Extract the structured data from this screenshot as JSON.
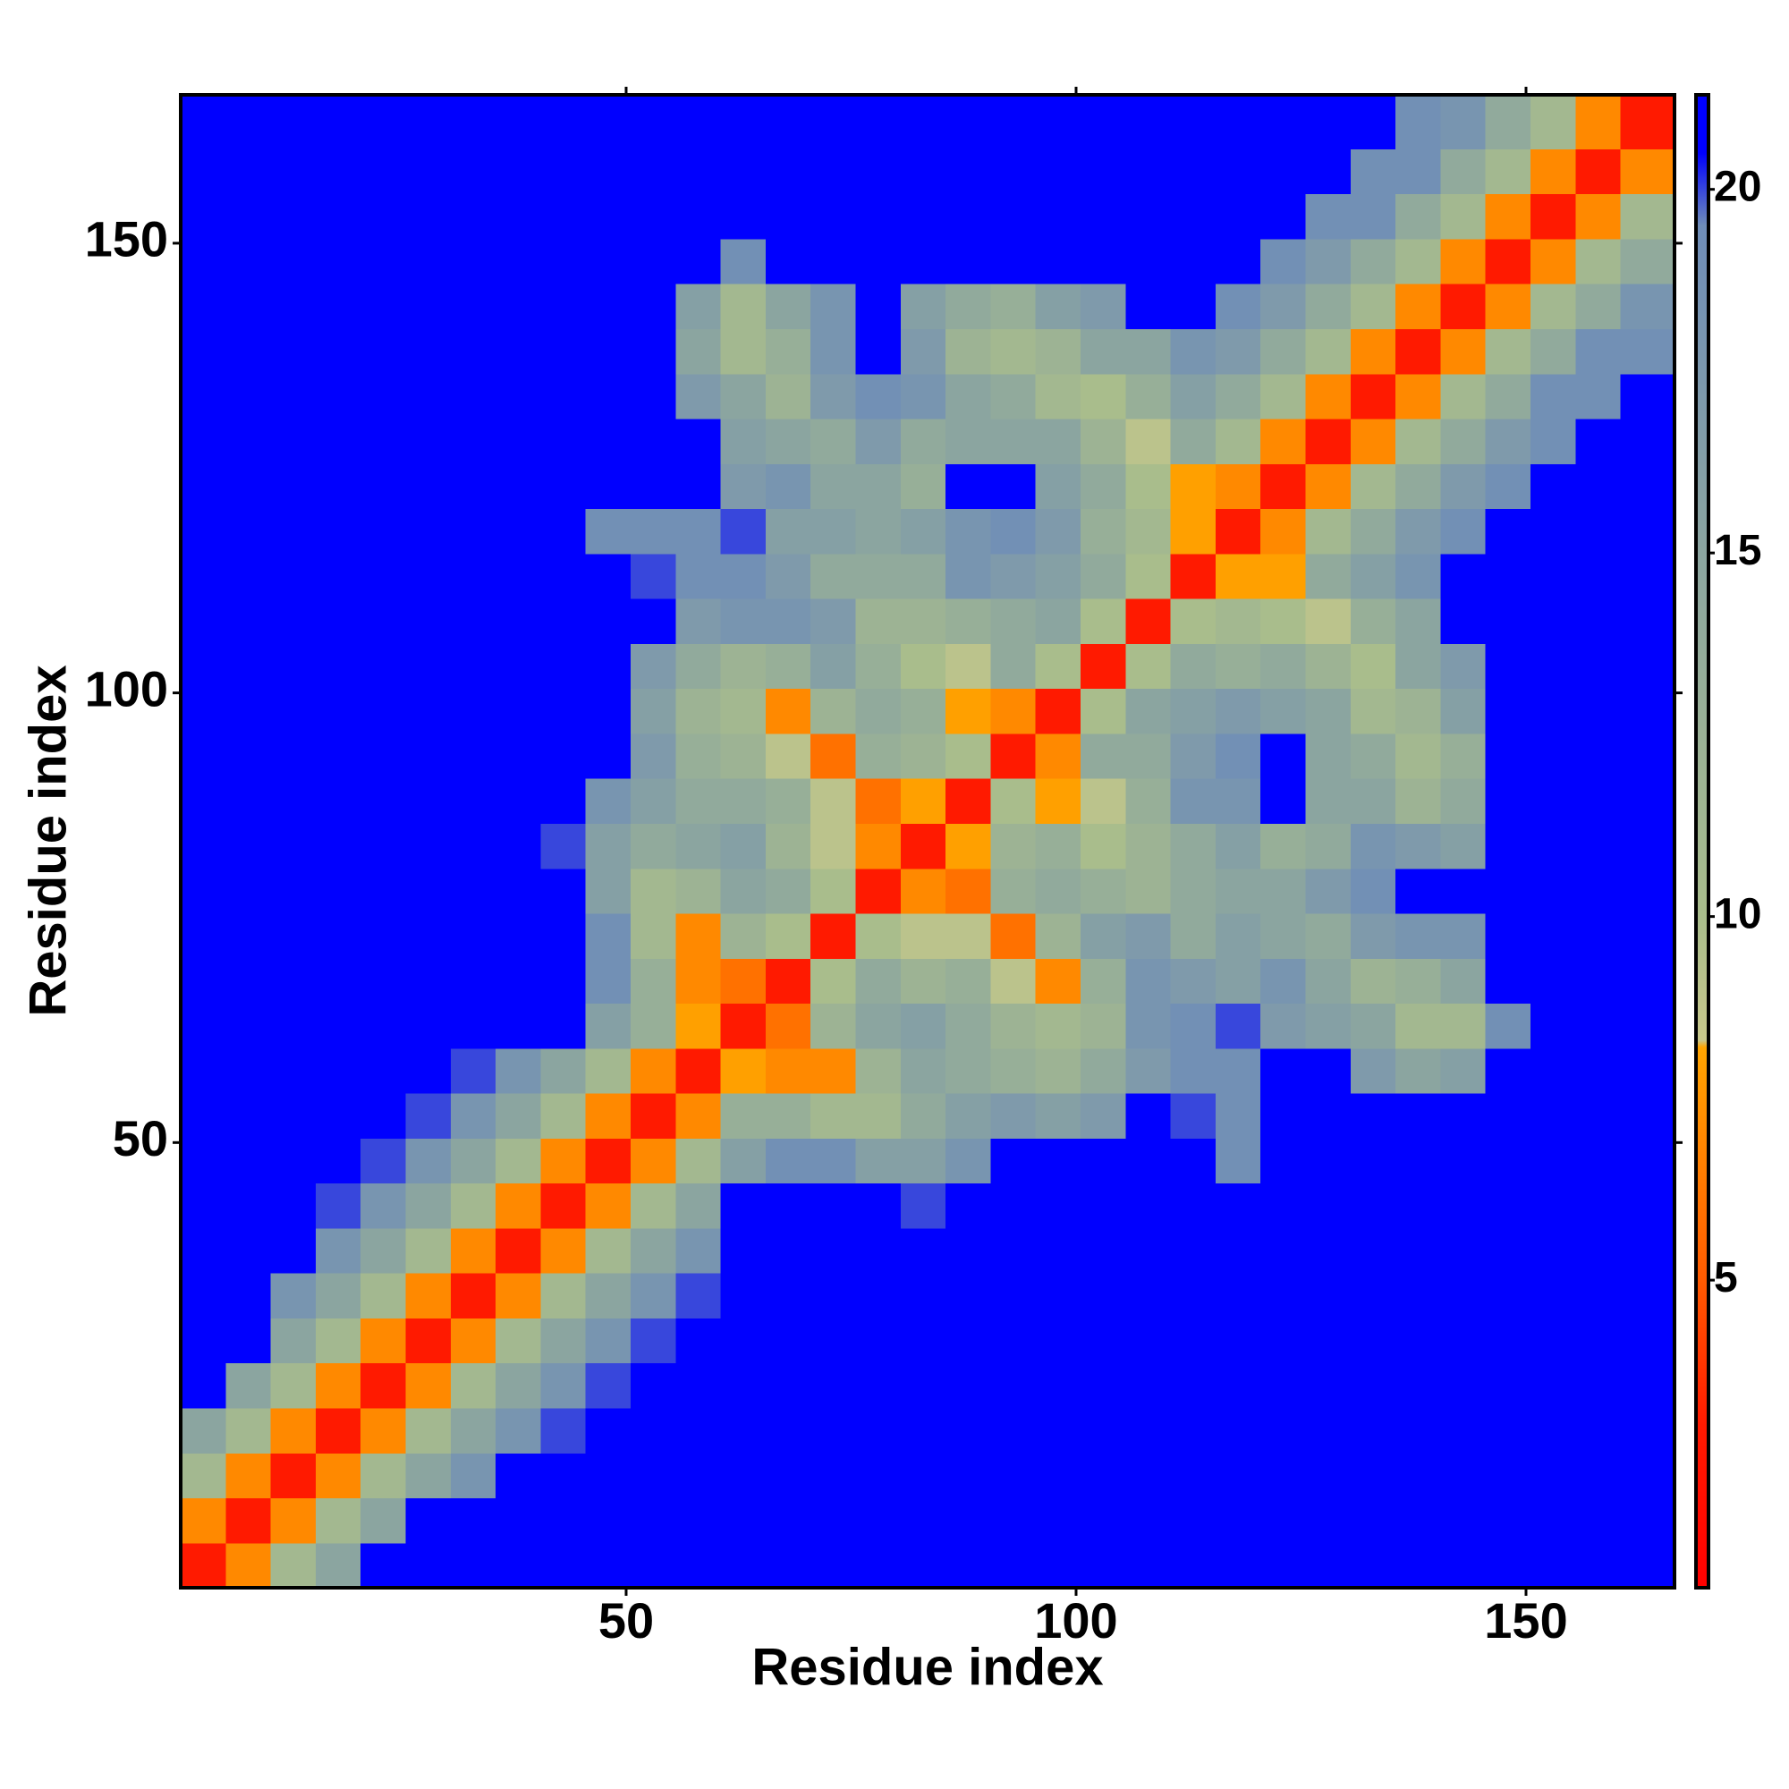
{
  "chart_data": {
    "type": "heatmap",
    "xlabel": "Residue index",
    "ylabel": "Residue index",
    "x": [
      3,
      8,
      13,
      18,
      23,
      28,
      33,
      38,
      43,
      48,
      53,
      58,
      63,
      68,
      73,
      78,
      83,
      88,
      93,
      98,
      103,
      108,
      113,
      118,
      123,
      128,
      133,
      138,
      143,
      148,
      153,
      158,
      163
    ],
    "y": [
      3,
      8,
      13,
      18,
      23,
      28,
      33,
      38,
      43,
      48,
      53,
      58,
      63,
      68,
      73,
      78,
      83,
      88,
      93,
      98,
      103,
      108,
      113,
      118,
      123,
      128,
      133,
      138,
      143,
      148,
      153,
      158,
      163
    ],
    "xlim": [
      0.5,
      166.5
    ],
    "ylim": [
      0.5,
      166.5
    ],
    "xticks": [
      50,
      100,
      150
    ],
    "yticks": [
      50,
      100,
      150
    ],
    "zlim": [
      0.77,
      21.3
    ],
    "zticks": [
      5,
      10,
      15,
      20
    ],
    "colorscale": [
      [
        0.77,
        "#ff0000"
      ],
      [
        3,
        "#ff1a00"
      ],
      [
        5,
        "#ff5a00"
      ],
      [
        8.2,
        "#ffa500"
      ],
      [
        8.3,
        "#c8c88c"
      ],
      [
        10,
        "#a9bd8c"
      ],
      [
        15,
        "#8ba5a0"
      ],
      [
        19.5,
        "#6f8db8"
      ],
      [
        20.5,
        "#0000ff"
      ],
      [
        21.3,
        "#0000ff"
      ]
    ],
    "z": [
      [
        3,
        7,
        11,
        15,
        21,
        21,
        21,
        21,
        21,
        21,
        21,
        21,
        21,
        21,
        21,
        21,
        21,
        21,
        21,
        21,
        21,
        21,
        21,
        21,
        21,
        21,
        21,
        21,
        21,
        21,
        21,
        21,
        21
      ],
      [
        7,
        3,
        7,
        11,
        15,
        21,
        21,
        21,
        21,
        21,
        21,
        21,
        21,
        21,
        21,
        21,
        21,
        21,
        21,
        21,
        21,
        21,
        21,
        21,
        21,
        21,
        21,
        21,
        21,
        21,
        21,
        21,
        21
      ],
      [
        11,
        7,
        3,
        7,
        11,
        15,
        18,
        21,
        21,
        21,
        21,
        21,
        21,
        21,
        21,
        21,
        21,
        21,
        21,
        21,
        21,
        21,
        21,
        21,
        21,
        21,
        21,
        21,
        21,
        21,
        21,
        21,
        21
      ],
      [
        15,
        11,
        7,
        3,
        7,
        11,
        15,
        18,
        20,
        21,
        21,
        21,
        21,
        21,
        21,
        21,
        21,
        21,
        21,
        21,
        21,
        21,
        21,
        21,
        21,
        21,
        21,
        21,
        21,
        21,
        21,
        21,
        21
      ],
      [
        21,
        15,
        11,
        7,
        3,
        7,
        11,
        15,
        18,
        20,
        21,
        21,
        21,
        21,
        21,
        21,
        21,
        21,
        21,
        21,
        21,
        21,
        21,
        21,
        21,
        21,
        21,
        21,
        21,
        21,
        21,
        21,
        21
      ],
      [
        21,
        21,
        15,
        11,
        7,
        3,
        7,
        11,
        15,
        18,
        20,
        21,
        21,
        21,
        21,
        21,
        21,
        21,
        21,
        21,
        21,
        21,
        21,
        21,
        21,
        21,
        21,
        21,
        21,
        21,
        21,
        21,
        21
      ],
      [
        21,
        21,
        18,
        15,
        11,
        7,
        3,
        7,
        11,
        15,
        18,
        20,
        21,
        21,
        21,
        21,
        21,
        21,
        21,
        21,
        21,
        21,
        21,
        21,
        21,
        21,
        21,
        21,
        21,
        21,
        21,
        21,
        21
      ],
      [
        21,
        21,
        21,
        18,
        15,
        11,
        7,
        3,
        7,
        11,
        15,
        18,
        21,
        21,
        21,
        21,
        21,
        21,
        21,
        21,
        21,
        21,
        21,
        21,
        21,
        21,
        21,
        21,
        21,
        21,
        21,
        21,
        21
      ],
      [
        21,
        21,
        21,
        20,
        18,
        15,
        11,
        7,
        3,
        7,
        11,
        15,
        21,
        21,
        21,
        21,
        20,
        21,
        21,
        21,
        21,
        21,
        21,
        21,
        21,
        21,
        21,
        21,
        21,
        21,
        21,
        21,
        21
      ],
      [
        21,
        21,
        21,
        21,
        20,
        18,
        15,
        11,
        7,
        3,
        7,
        11,
        16,
        19,
        19,
        16,
        16,
        18,
        21,
        21,
        21,
        21,
        21,
        19,
        21,
        21,
        21,
        21,
        21,
        21,
        21,
        21,
        21
      ],
      [
        21,
        21,
        21,
        21,
        21,
        20,
        18,
        15,
        11,
        7,
        3,
        7,
        13,
        13,
        11,
        11,
        14,
        16,
        17,
        16,
        17,
        21,
        20,
        19,
        21,
        21,
        21,
        21,
        21,
        21,
        21,
        21,
        21
      ],
      [
        21,
        21,
        21,
        21,
        21,
        21,
        20,
        18,
        15,
        11,
        7,
        3,
        8,
        7,
        7,
        12,
        15,
        14,
        13,
        12,
        14,
        17,
        19,
        19,
        21,
        21,
        17,
        15,
        16,
        21,
        21,
        21,
        21
      ],
      [
        21,
        21,
        21,
        21,
        21,
        21,
        21,
        21,
        21,
        16,
        13,
        8,
        3,
        6,
        12,
        15,
        16,
        14,
        12,
        11,
        12,
        18,
        19,
        20,
        17,
        16,
        15,
        11,
        11,
        19,
        21,
        21,
        21
      ],
      [
        21,
        21,
        21,
        21,
        21,
        21,
        21,
        21,
        21,
        19,
        13,
        7,
        6,
        3,
        10,
        14,
        12,
        13,
        9,
        7,
        13,
        18,
        17,
        16,
        18,
        15,
        12,
        13,
        15,
        21,
        21,
        21,
        21
      ],
      [
        21,
        21,
        21,
        21,
        21,
        21,
        21,
        21,
        21,
        19,
        11,
        7,
        12,
        10,
        3,
        10,
        9,
        9,
        6,
        12,
        16,
        17,
        14,
        16,
        15,
        14,
        17,
        18,
        18,
        21,
        21,
        21,
        21
      ],
      [
        21,
        21,
        21,
        21,
        21,
        21,
        21,
        21,
        21,
        16,
        11,
        12,
        15,
        14,
        10,
        3,
        7,
        6,
        13,
        14,
        13,
        12,
        14,
        15,
        15,
        17,
        19,
        21,
        21,
        21,
        21,
        21,
        21
      ],
      [
        21,
        21,
        21,
        21,
        21,
        21,
        21,
        21,
        20,
        16,
        14,
        15,
        16,
        12,
        9,
        7,
        3,
        8,
        12,
        13,
        10,
        12,
        14,
        16,
        13,
        14,
        18,
        17,
        16,
        21,
        21,
        21,
        21
      ],
      [
        21,
        21,
        21,
        21,
        21,
        21,
        21,
        21,
        21,
        18,
        16,
        14,
        14,
        13,
        9,
        6,
        8,
        3,
        10,
        8,
        9,
        13,
        18,
        18,
        21,
        15,
        15,
        12,
        14,
        21,
        21,
        21,
        21
      ],
      [
        21,
        21,
        21,
        21,
        21,
        21,
        21,
        21,
        21,
        21,
        17,
        13,
        12,
        9,
        6,
        13,
        12,
        10,
        3,
        7,
        14,
        14,
        17,
        19,
        21,
        15,
        14,
        11,
        13,
        21,
        21,
        21,
        21
      ],
      [
        21,
        21,
        21,
        21,
        21,
        21,
        21,
        21,
        21,
        21,
        16,
        12,
        11,
        7,
        12,
        14,
        13,
        8,
        7,
        3,
        10,
        15,
        16,
        17,
        16,
        15,
        11,
        12,
        16,
        21,
        21,
        21,
        21
      ],
      [
        21,
        21,
        21,
        21,
        21,
        21,
        21,
        21,
        21,
        21,
        17,
        14,
        12,
        13,
        16,
        13,
        10,
        9,
        14,
        10,
        3,
        10,
        14,
        13,
        14,
        12,
        10,
        15,
        17,
        21,
        21,
        21,
        21
      ],
      [
        21,
        21,
        21,
        21,
        21,
        21,
        21,
        21,
        21,
        21,
        21,
        17,
        18,
        18,
        17,
        12,
        12,
        13,
        14,
        15,
        10,
        3,
        10,
        11,
        10,
        9,
        13,
        15,
        21,
        21,
        21,
        21,
        21
      ],
      [
        21,
        21,
        21,
        21,
        21,
        21,
        21,
        21,
        21,
        21,
        20,
        19,
        19,
        17,
        14,
        14,
        14,
        18,
        17,
        16,
        14,
        10,
        3,
        8,
        8,
        14,
        16,
        18,
        21,
        21,
        21,
        21,
        21
      ],
      [
        21,
        21,
        21,
        21,
        21,
        21,
        21,
        21,
        21,
        19,
        19,
        19,
        20,
        16,
        16,
        15,
        16,
        18,
        19,
        17,
        13,
        11,
        8,
        3,
        7,
        11,
        14,
        17,
        19,
        21,
        21,
        21,
        21
      ],
      [
        21,
        21,
        21,
        21,
        21,
        21,
        21,
        21,
        21,
        21,
        21,
        21,
        17,
        18,
        15,
        15,
        13,
        21,
        21,
        16,
        14,
        10,
        8,
        7,
        3,
        7,
        11,
        14,
        17,
        19,
        21,
        21,
        21
      ],
      [
        21,
        21,
        21,
        21,
        21,
        21,
        21,
        21,
        21,
        21,
        21,
        21,
        16,
        15,
        14,
        17,
        14,
        15,
        15,
        15,
        12,
        9,
        14,
        11,
        7,
        3,
        7,
        11,
        14,
        17,
        19,
        21,
        21
      ],
      [
        21,
        21,
        21,
        21,
        21,
        21,
        21,
        21,
        21,
        21,
        21,
        17,
        15,
        12,
        17,
        19,
        18,
        15,
        14,
        11,
        10,
        13,
        16,
        14,
        11,
        7,
        3,
        7,
        11,
        14,
        19,
        19,
        21
      ],
      [
        21,
        21,
        21,
        21,
        21,
        21,
        21,
        21,
        21,
        21,
        21,
        15,
        11,
        13,
        18,
        21,
        17,
        12,
        11,
        12,
        15,
        15,
        18,
        17,
        14,
        11,
        7,
        3,
        7,
        11,
        14,
        19,
        19
      ],
      [
        21,
        21,
        21,
        21,
        21,
        21,
        21,
        21,
        21,
        21,
        21,
        16,
        11,
        15,
        18,
        21,
        16,
        14,
        13,
        16,
        17,
        21,
        21,
        19,
        17,
        14,
        11,
        7,
        3,
        7,
        11,
        14,
        18
      ],
      [
        21,
        21,
        21,
        21,
        21,
        21,
        21,
        21,
        21,
        21,
        21,
        21,
        19,
        21,
        21,
        21,
        21,
        21,
        21,
        21,
        21,
        21,
        21,
        21,
        19,
        17,
        14,
        11,
        7,
        3,
        7,
        11,
        14
      ],
      [
        21,
        21,
        21,
        21,
        21,
        21,
        21,
        21,
        21,
        21,
        21,
        21,
        21,
        21,
        21,
        21,
        21,
        21,
        21,
        21,
        21,
        21,
        21,
        21,
        21,
        19,
        19,
        14,
        11,
        7,
        3,
        7,
        11
      ],
      [
        21,
        21,
        21,
        21,
        21,
        21,
        21,
        21,
        21,
        21,
        21,
        21,
        21,
        21,
        21,
        21,
        21,
        21,
        21,
        21,
        21,
        21,
        21,
        21,
        21,
        21,
        19,
        19,
        14,
        11,
        7,
        3,
        7
      ],
      [
        21,
        21,
        21,
        21,
        21,
        21,
        21,
        21,
        21,
        21,
        21,
        21,
        21,
        21,
        21,
        21,
        21,
        21,
        21,
        21,
        21,
        21,
        21,
        21,
        21,
        21,
        21,
        19,
        18,
        14,
        11,
        7,
        3
      ]
    ]
  }
}
